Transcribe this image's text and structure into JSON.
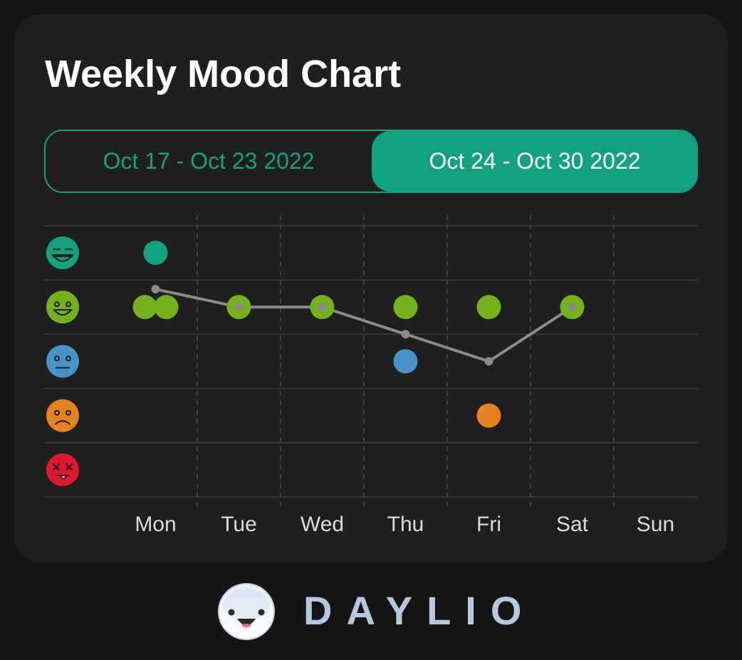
{
  "title": "Weekly Mood Chart",
  "week_selector": {
    "previous_label": "Oct 17 - Oct 23 2022",
    "current_label": "Oct 24 - Oct 30 2022"
  },
  "colors": {
    "accent": "#12a27f",
    "rad": "#12a27f",
    "good": "#74b11a",
    "meh": "#4894c8",
    "bad": "#e58220",
    "awful": "#e0182d",
    "average_line": "#8a8a8a"
  },
  "chart_data": {
    "type": "scatter",
    "categories": [
      "Mon",
      "Tue",
      "Wed",
      "Thu",
      "Fri",
      "Sat",
      "Sun"
    ],
    "mood_levels": [
      {
        "level": 5,
        "mood": "rad",
        "icon": "rad-face-icon"
      },
      {
        "level": 4,
        "mood": "good",
        "icon": "good-face-icon"
      },
      {
        "level": 3,
        "mood": "meh",
        "icon": "meh-face-icon"
      },
      {
        "level": 2,
        "mood": "bad",
        "icon": "bad-face-icon"
      },
      {
        "level": 1,
        "mood": "awful",
        "icon": "awful-face-icon"
      }
    ],
    "entries": [
      {
        "day": "Mon",
        "mood": 5
      },
      {
        "day": "Mon",
        "mood": 4
      },
      {
        "day": "Mon",
        "mood": 4
      },
      {
        "day": "Tue",
        "mood": 4
      },
      {
        "day": "Wed",
        "mood": 4
      },
      {
        "day": "Thu",
        "mood": 4
      },
      {
        "day": "Thu",
        "mood": 3
      },
      {
        "day": "Fri",
        "mood": 4
      },
      {
        "day": "Fri",
        "mood": 2
      },
      {
        "day": "Sat",
        "mood": 4
      }
    ],
    "average_line": [
      {
        "day": "Mon",
        "value": 4.33
      },
      {
        "day": "Tue",
        "value": 4
      },
      {
        "day": "Wed",
        "value": 4
      },
      {
        "day": "Thu",
        "value": 3.5
      },
      {
        "day": "Fri",
        "value": 3
      },
      {
        "day": "Sat",
        "value": 4
      }
    ],
    "ylim": [
      1,
      5
    ],
    "grid": true
  },
  "footer": {
    "brand": "DAYLIO",
    "logo_icon": "daylio-smiley-logo-icon"
  }
}
